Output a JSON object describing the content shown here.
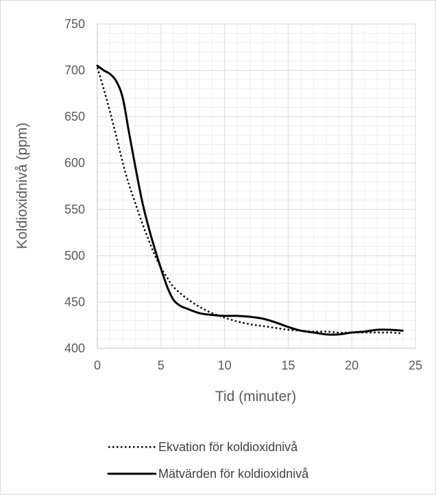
{
  "chart_data": {
    "type": "line",
    "xlabel": "Tid (minuter)",
    "ylabel": "Koldioxidnivå (ppm)",
    "xlim": [
      0,
      25
    ],
    "ylim": [
      400,
      750
    ],
    "x_ticks": [
      "0",
      "5",
      "10",
      "15",
      "20",
      "25"
    ],
    "y_ticks": [
      "400",
      "450",
      "500",
      "550",
      "600",
      "650",
      "700",
      "750"
    ],
    "major_grid": true,
    "minor_grid": true,
    "legend_position": "bottom",
    "series": [
      {
        "name": "Ekvation för koldioxidnivå",
        "style": "dotted",
        "color": "#000000",
        "x": [
          0,
          0.5,
          1,
          1.5,
          2,
          2.5,
          3,
          3.5,
          4,
          4.5,
          5,
          5.5,
          6,
          7,
          8,
          9,
          10,
          11,
          12,
          13,
          14,
          15,
          16,
          17,
          18,
          19,
          20,
          21,
          22,
          23,
          24
        ],
        "y": [
          703,
          680,
          655,
          628,
          600,
          576,
          556,
          536,
          518,
          501,
          487,
          476,
          466,
          454,
          445,
          438,
          433,
          429,
          426,
          424,
          422,
          420,
          419,
          418,
          418,
          417,
          417,
          417,
          417,
          417,
          416
        ]
      },
      {
        "name": "Mätvärden för koldioxidnivå",
        "style": "solid",
        "color": "#000000",
        "x": [
          0,
          0.5,
          1,
          1.5,
          2,
          2.5,
          3,
          3.5,
          4,
          4.5,
          5,
          5.5,
          6,
          6.5,
          7,
          8,
          9,
          10,
          11,
          12,
          13,
          14,
          15,
          16,
          17,
          18,
          19,
          20,
          21,
          22,
          23,
          24
        ],
        "y": [
          705,
          700,
          696,
          688,
          670,
          632,
          595,
          560,
          532,
          508,
          486,
          466,
          452,
          446,
          443,
          438,
          436,
          435,
          435,
          434,
          432,
          428,
          423,
          419,
          417,
          415,
          415,
          417,
          418,
          420,
          420,
          419
        ]
      }
    ]
  }
}
